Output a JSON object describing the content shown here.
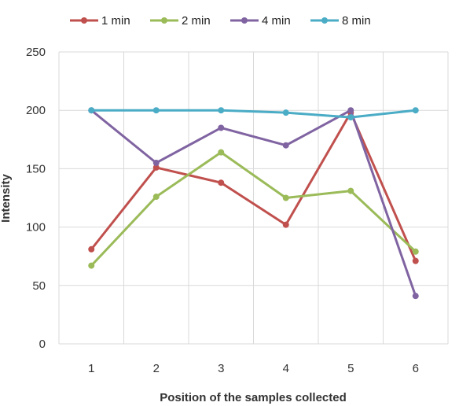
{
  "chart_data": {
    "type": "line",
    "title": "",
    "xlabel": "Position of the samples collected",
    "ylabel": "Intensity",
    "categories": [
      "1",
      "2",
      "3",
      "4",
      "5",
      "6"
    ],
    "ylim": [
      0,
      250
    ],
    "yticks": [
      0,
      50,
      100,
      150,
      200,
      250
    ],
    "grid": true,
    "legend_position": "top",
    "series": [
      {
        "name": "1 min",
        "color": "#c0504d",
        "values": [
          81,
          151,
          138,
          102,
          198,
          71
        ]
      },
      {
        "name": "2 min",
        "color": "#9bbb59",
        "values": [
          67,
          126,
          164,
          125,
          131,
          79
        ]
      },
      {
        "name": "4 min",
        "color": "#8064a2",
        "values": [
          200,
          155,
          185,
          170,
          200,
          41
        ]
      },
      {
        "name": "8 min",
        "color": "#4bacc6",
        "values": [
          200,
          200,
          200,
          198,
          194,
          200
        ]
      }
    ]
  }
}
